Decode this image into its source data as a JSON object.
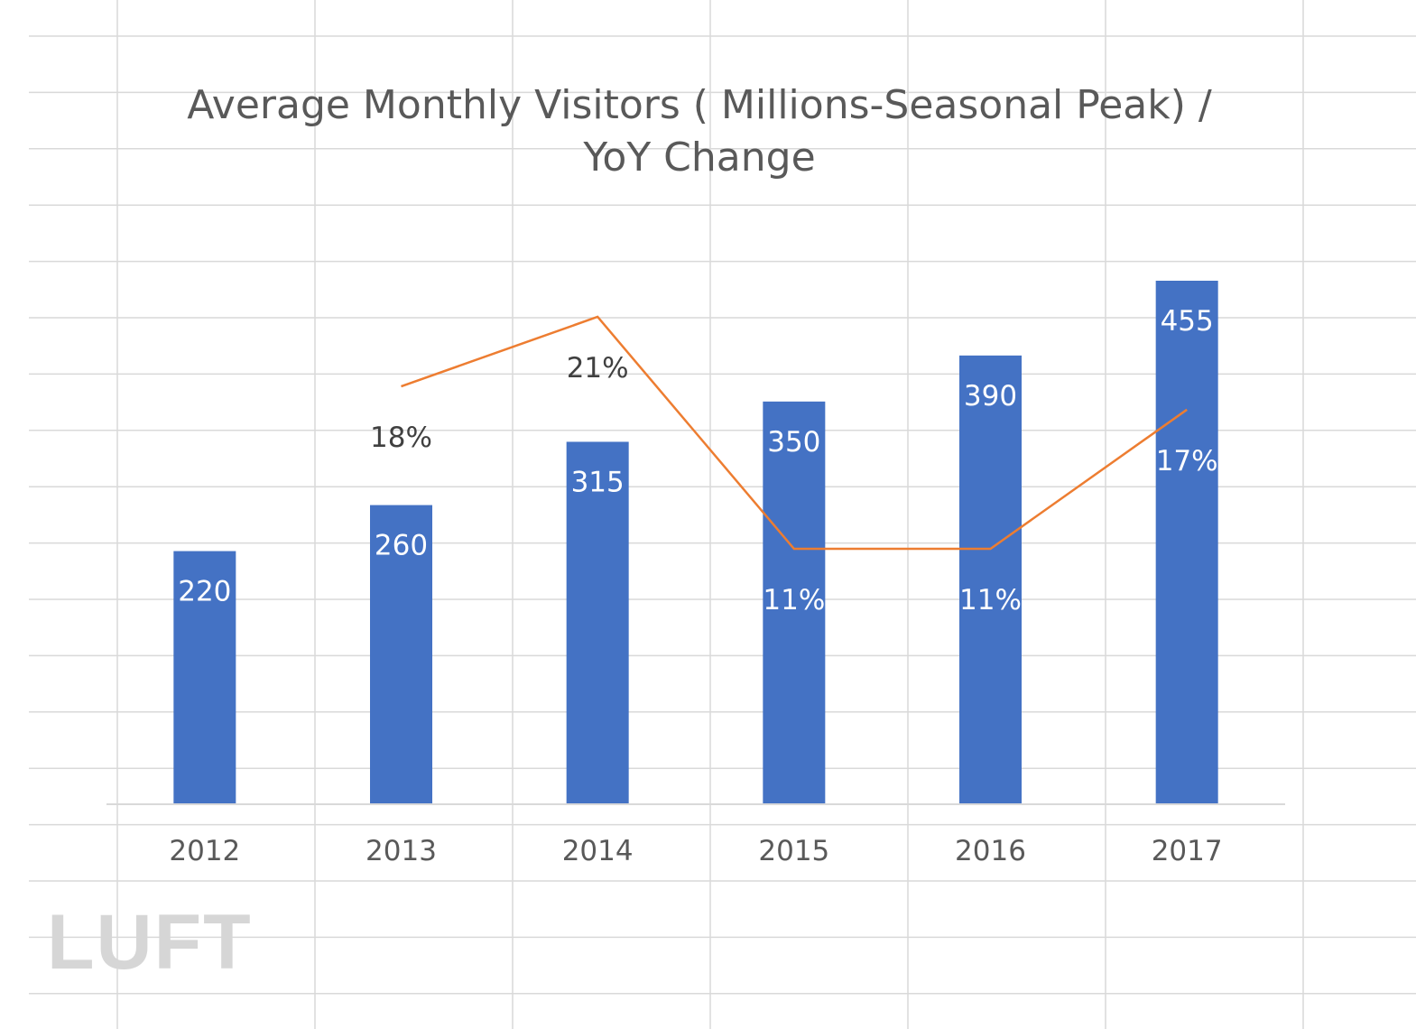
{
  "watermark": "LUFT",
  "chart_data": {
    "type": "bar",
    "title_lines": [
      "Average Monthly Visitors ( Millions-Seasonal Peak) /",
      "YoY Change"
    ],
    "categories": [
      "2012",
      "2013",
      "2014",
      "2015",
      "2016",
      "2017"
    ],
    "series": [
      {
        "type": "bar",
        "values": [
          220,
          260,
          315,
          350,
          390,
          455
        ],
        "labels": [
          "220",
          "260",
          "315",
          "350",
          "390",
          "455"
        ],
        "color": "#4472c4"
      },
      {
        "type": "line",
        "values": [
          null,
          0.18,
          0.21,
          0.11,
          0.11,
          0.17
        ],
        "labels": [
          null,
          "18%",
          "21%",
          "11%",
          "11%",
          "17%"
        ],
        "color": "#ed7d31"
      }
    ],
    "ylim_primary": [
      0,
      500
    ],
    "ylim_secondary": [
      0.0,
      0.26
    ],
    "grid": false,
    "legend": "none",
    "background": "spreadsheet gridlines"
  }
}
